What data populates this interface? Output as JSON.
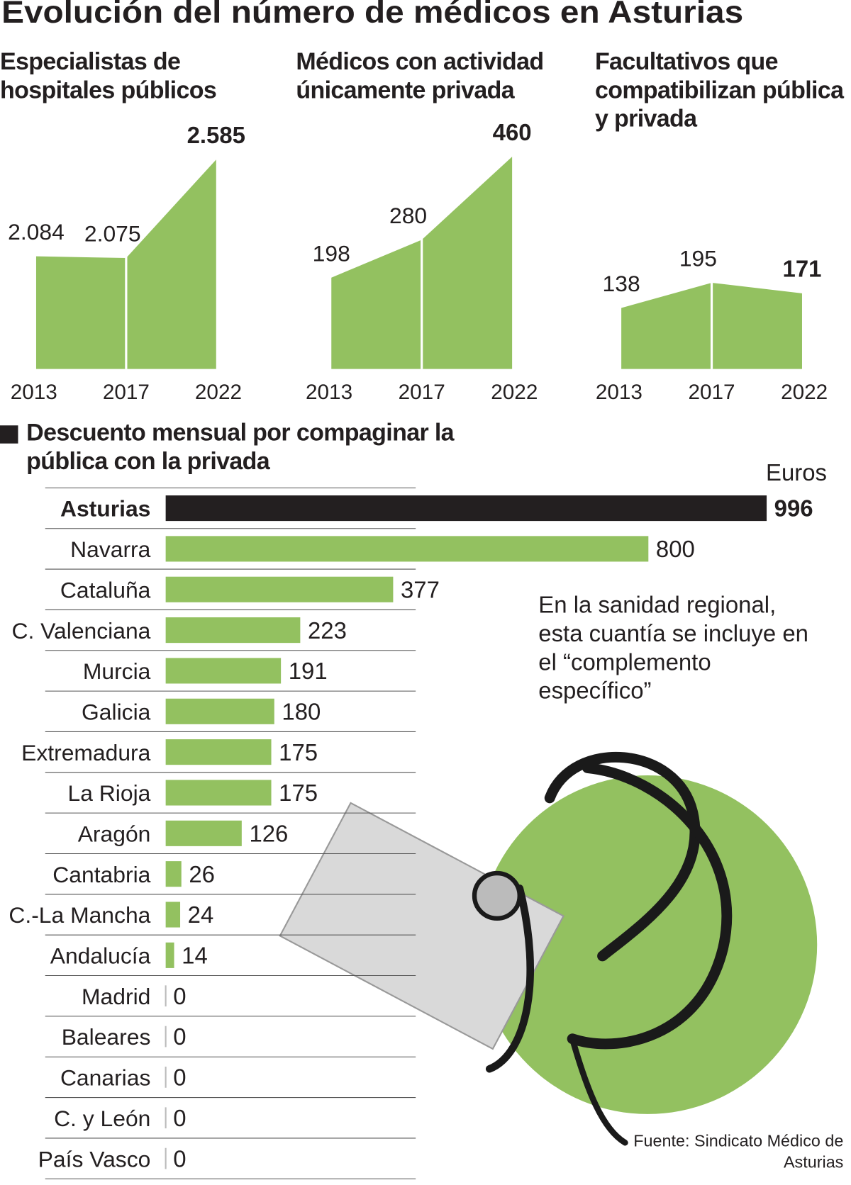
{
  "title": "Evolución del número de médicos en Asturias",
  "chart_data": [
    {
      "type": "area",
      "title": "Especialistas de hospitales públicos",
      "categories": [
        "2013",
        "2017",
        "2022"
      ],
      "values": [
        2084,
        2075,
        2585
      ],
      "value_labels": [
        "2.084",
        "2.075",
        "2.585"
      ],
      "ylim": [
        1500,
        2600
      ],
      "color": "#93c160"
    },
    {
      "type": "area",
      "title": "Médicos con actividad únicamente privada",
      "categories": [
        "2013",
        "2017",
        "2022"
      ],
      "values": [
        198,
        280,
        460
      ],
      "ylim": [
        0,
        460
      ],
      "color": "#93c160"
    },
    {
      "type": "area",
      "title": "Facultativos que compatibilizan pública y privada",
      "categories": [
        "2013",
        "2017",
        "2022"
      ],
      "values": [
        138,
        195,
        171
      ],
      "ylim": [
        0,
        480
      ],
      "color": "#93c160"
    },
    {
      "type": "bar",
      "title": "Descuento mensual por compaginar la pública con la privada",
      "unit": "Euros",
      "categories": [
        "Asturias",
        "Navarra",
        "Cataluña",
        "C. Valenciana",
        "Murcia",
        "Galicia",
        "Extremadura",
        "La Rioja",
        "Aragón",
        "Cantabria",
        "C.-La Mancha",
        "Andalucía",
        "Madrid",
        "Baleares",
        "Canarias",
        "C. y León",
        "País Vasco"
      ],
      "values": [
        996,
        800,
        377,
        223,
        191,
        180,
        175,
        175,
        126,
        26,
        24,
        14,
        0,
        0,
        0,
        0,
        0
      ],
      "xlim": [
        0,
        996
      ],
      "color": "#93c160",
      "highlight_color": "#231f20",
      "note": "En la sanidad regional, esta cuantía se incluye en el “complemento específico”",
      "source": "Fuente: Sindicato Médico de Asturias"
    }
  ]
}
